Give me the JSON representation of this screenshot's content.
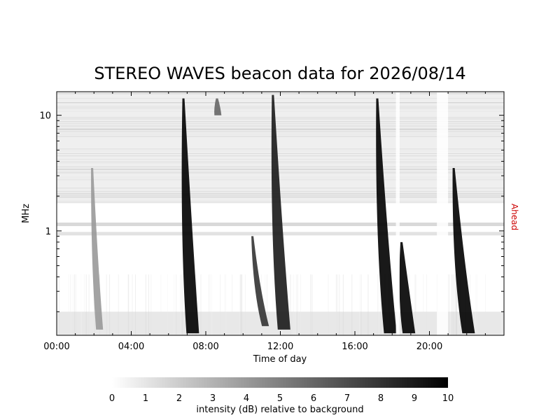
{
  "chart_data": {
    "type": "heatmap",
    "title": "STEREO WAVES beacon data for 2026/08/14",
    "xlabel": "Time of day",
    "ylabel": "MHz",
    "side_label": "Ahead",
    "side_label_color": "#cc0000",
    "x_range_hours": [
      0,
      24
    ],
    "x_tick_labels": [
      "00:00",
      "04:00",
      "08:00",
      "12:00",
      "16:00",
      "20:00"
    ],
    "x_tick_hours": [
      0,
      4,
      8,
      12,
      16,
      20
    ],
    "y_scale": "log",
    "y_range_mhz": [
      0.125,
      16
    ],
    "y_tick_labels": [
      "1",
      "10"
    ],
    "y_tick_values": [
      1,
      10
    ],
    "colorbar": {
      "label": "intensity (dB) relative to background",
      "range": [
        0,
        10
      ],
      "tick_labels": [
        "0",
        "1",
        "2",
        "3",
        "4",
        "5",
        "6",
        "7",
        "8",
        "9",
        "10"
      ],
      "color_low": "#ffffff",
      "color_high": "#000000"
    },
    "bursts": [
      {
        "name": "burst-1",
        "start_hour": 1.9,
        "start_mhz": 3.5,
        "end_hour": 2.3,
        "end_mhz": 0.14,
        "peak_db": 4
      },
      {
        "name": "burst-2",
        "start_hour": 6.8,
        "start_mhz": 14,
        "end_hour": 7.3,
        "end_mhz": 0.13,
        "peak_db": 10
      },
      {
        "name": "burst-3",
        "start_hour": 8.6,
        "start_mhz": 14,
        "end_hour": 8.65,
        "end_mhz": 10,
        "peak_db": 6
      },
      {
        "name": "burst-4",
        "start_hour": 10.5,
        "start_mhz": 0.9,
        "end_hour": 11.2,
        "end_mhz": 0.15,
        "peak_db": 8
      },
      {
        "name": "burst-5",
        "start_hour": 11.6,
        "start_mhz": 15,
        "end_hour": 12.2,
        "end_mhz": 0.14,
        "peak_db": 9
      },
      {
        "name": "burst-6",
        "start_hour": 17.2,
        "start_mhz": 14,
        "end_hour": 17.9,
        "end_mhz": 0.13,
        "peak_db": 10
      },
      {
        "name": "burst-7",
        "start_hour": 18.5,
        "start_mhz": 0.8,
        "end_hour": 18.9,
        "end_mhz": 0.13,
        "peak_db": 10
      },
      {
        "name": "burst-8",
        "start_hour": 21.3,
        "start_mhz": 3.5,
        "end_hour": 22.1,
        "end_mhz": 0.13,
        "peak_db": 10
      }
    ],
    "data_gaps_hours": [
      [
        18.2,
        18.4
      ],
      [
        20.4,
        21.0
      ]
    ]
  }
}
